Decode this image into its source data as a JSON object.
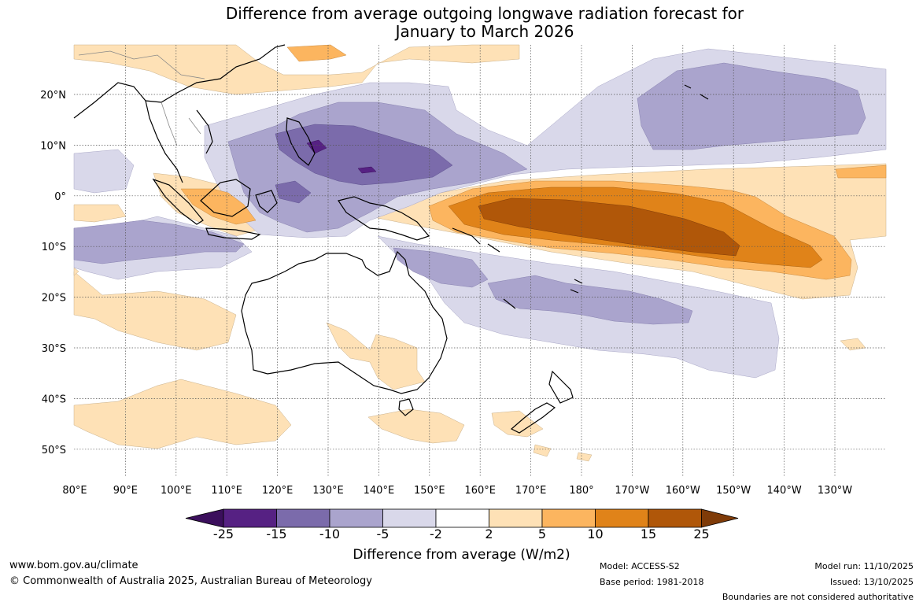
{
  "title": {
    "line1": "Difference from average outgoing longwave radiation forecast for",
    "line2": "January to March 2026"
  },
  "map": {
    "lon_labels": [
      "80°E",
      "90°E",
      "100°E",
      "110°E",
      "120°E",
      "130°E",
      "140°E",
      "150°E",
      "160°E",
      "170°E",
      "180°",
      "170°W",
      "160°W",
      "150°W",
      "140°W",
      "130°W"
    ],
    "lat_labels": [
      "20°N",
      "10°N",
      "0°",
      "10°S",
      "20°S",
      "30°S",
      "40°S",
      "50°S"
    ]
  },
  "colorbar": {
    "ticks": [
      "-25",
      "-15",
      "-10",
      "-5",
      "-2",
      "2",
      "5",
      "10",
      "15",
      "25"
    ],
    "colors": [
      "#3b0f5c",
      "#562183",
      "#7b6bab",
      "#aaa4cd",
      "#d9d8ea",
      "#ffffff",
      "#fee1b6",
      "#fcb55f",
      "#e08319",
      "#b05709",
      "#7f3b08"
    ],
    "label": "Difference from average (W/m2)"
  },
  "footer": {
    "url": "www.bom.gov.au/climate",
    "copyright": "© Commonwealth of Australia 2025, Australian Bureau of Meteorology",
    "model": "Model: ACCESS-S2",
    "base_period": "Base period: 1981-2018",
    "model_run": "Model run: 11/10/2025",
    "issued": "Issued: 13/10/2025",
    "boundaries": "Boundaries are not considered authoritative"
  }
}
